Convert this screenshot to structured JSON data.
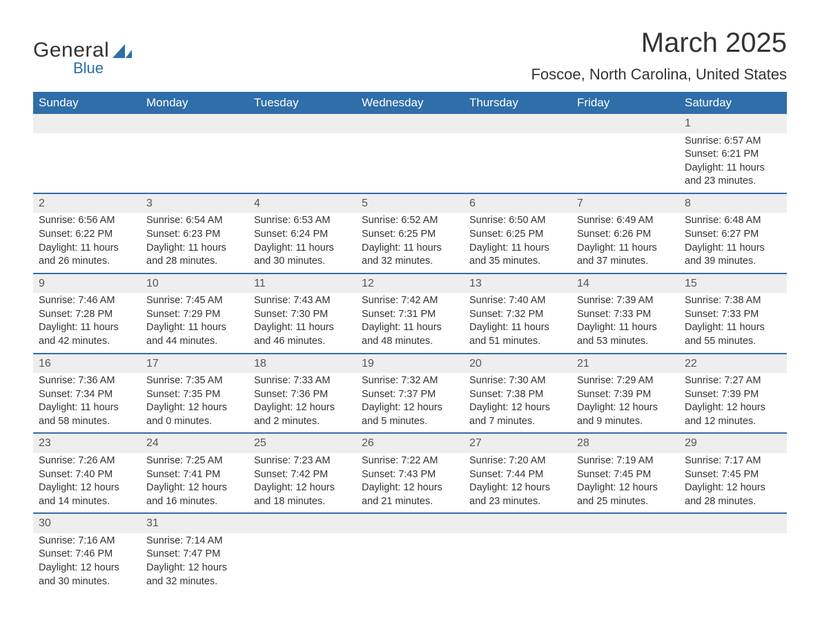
{
  "brand": {
    "name1": "General",
    "name2": "Blue",
    "icon_color": "#2f6ea8"
  },
  "title": {
    "month": "March 2025",
    "location": "Foscoe, North Carolina, United States"
  },
  "columns": [
    "Sunday",
    "Monday",
    "Tuesday",
    "Wednesday",
    "Thursday",
    "Friday",
    "Saturday"
  ],
  "colors": {
    "header_bg": "#2f6ea8",
    "header_fg": "#ffffff",
    "daynum_bg": "#eeeeee",
    "row_border": "#2f6ea8",
    "text": "#333333"
  },
  "weeks": [
    [
      null,
      null,
      null,
      null,
      null,
      null,
      {
        "n": "1",
        "sr": "Sunrise: 6:57 AM",
        "ss": "Sunset: 6:21 PM",
        "d1": "Daylight: 11 hours",
        "d2": "and 23 minutes."
      }
    ],
    [
      {
        "n": "2",
        "sr": "Sunrise: 6:56 AM",
        "ss": "Sunset: 6:22 PM",
        "d1": "Daylight: 11 hours",
        "d2": "and 26 minutes."
      },
      {
        "n": "3",
        "sr": "Sunrise: 6:54 AM",
        "ss": "Sunset: 6:23 PM",
        "d1": "Daylight: 11 hours",
        "d2": "and 28 minutes."
      },
      {
        "n": "4",
        "sr": "Sunrise: 6:53 AM",
        "ss": "Sunset: 6:24 PM",
        "d1": "Daylight: 11 hours",
        "d2": "and 30 minutes."
      },
      {
        "n": "5",
        "sr": "Sunrise: 6:52 AM",
        "ss": "Sunset: 6:25 PM",
        "d1": "Daylight: 11 hours",
        "d2": "and 32 minutes."
      },
      {
        "n": "6",
        "sr": "Sunrise: 6:50 AM",
        "ss": "Sunset: 6:25 PM",
        "d1": "Daylight: 11 hours",
        "d2": "and 35 minutes."
      },
      {
        "n": "7",
        "sr": "Sunrise: 6:49 AM",
        "ss": "Sunset: 6:26 PM",
        "d1": "Daylight: 11 hours",
        "d2": "and 37 minutes."
      },
      {
        "n": "8",
        "sr": "Sunrise: 6:48 AM",
        "ss": "Sunset: 6:27 PM",
        "d1": "Daylight: 11 hours",
        "d2": "and 39 minutes."
      }
    ],
    [
      {
        "n": "9",
        "sr": "Sunrise: 7:46 AM",
        "ss": "Sunset: 7:28 PM",
        "d1": "Daylight: 11 hours",
        "d2": "and 42 minutes."
      },
      {
        "n": "10",
        "sr": "Sunrise: 7:45 AM",
        "ss": "Sunset: 7:29 PM",
        "d1": "Daylight: 11 hours",
        "d2": "and 44 minutes."
      },
      {
        "n": "11",
        "sr": "Sunrise: 7:43 AM",
        "ss": "Sunset: 7:30 PM",
        "d1": "Daylight: 11 hours",
        "d2": "and 46 minutes."
      },
      {
        "n": "12",
        "sr": "Sunrise: 7:42 AM",
        "ss": "Sunset: 7:31 PM",
        "d1": "Daylight: 11 hours",
        "d2": "and 48 minutes."
      },
      {
        "n": "13",
        "sr": "Sunrise: 7:40 AM",
        "ss": "Sunset: 7:32 PM",
        "d1": "Daylight: 11 hours",
        "d2": "and 51 minutes."
      },
      {
        "n": "14",
        "sr": "Sunrise: 7:39 AM",
        "ss": "Sunset: 7:33 PM",
        "d1": "Daylight: 11 hours",
        "d2": "and 53 minutes."
      },
      {
        "n": "15",
        "sr": "Sunrise: 7:38 AM",
        "ss": "Sunset: 7:33 PM",
        "d1": "Daylight: 11 hours",
        "d2": "and 55 minutes."
      }
    ],
    [
      {
        "n": "16",
        "sr": "Sunrise: 7:36 AM",
        "ss": "Sunset: 7:34 PM",
        "d1": "Daylight: 11 hours",
        "d2": "and 58 minutes."
      },
      {
        "n": "17",
        "sr": "Sunrise: 7:35 AM",
        "ss": "Sunset: 7:35 PM",
        "d1": "Daylight: 12 hours",
        "d2": "and 0 minutes."
      },
      {
        "n": "18",
        "sr": "Sunrise: 7:33 AM",
        "ss": "Sunset: 7:36 PM",
        "d1": "Daylight: 12 hours",
        "d2": "and 2 minutes."
      },
      {
        "n": "19",
        "sr": "Sunrise: 7:32 AM",
        "ss": "Sunset: 7:37 PM",
        "d1": "Daylight: 12 hours",
        "d2": "and 5 minutes."
      },
      {
        "n": "20",
        "sr": "Sunrise: 7:30 AM",
        "ss": "Sunset: 7:38 PM",
        "d1": "Daylight: 12 hours",
        "d2": "and 7 minutes."
      },
      {
        "n": "21",
        "sr": "Sunrise: 7:29 AM",
        "ss": "Sunset: 7:39 PM",
        "d1": "Daylight: 12 hours",
        "d2": "and 9 minutes."
      },
      {
        "n": "22",
        "sr": "Sunrise: 7:27 AM",
        "ss": "Sunset: 7:39 PM",
        "d1": "Daylight: 12 hours",
        "d2": "and 12 minutes."
      }
    ],
    [
      {
        "n": "23",
        "sr": "Sunrise: 7:26 AM",
        "ss": "Sunset: 7:40 PM",
        "d1": "Daylight: 12 hours",
        "d2": "and 14 minutes."
      },
      {
        "n": "24",
        "sr": "Sunrise: 7:25 AM",
        "ss": "Sunset: 7:41 PM",
        "d1": "Daylight: 12 hours",
        "d2": "and 16 minutes."
      },
      {
        "n": "25",
        "sr": "Sunrise: 7:23 AM",
        "ss": "Sunset: 7:42 PM",
        "d1": "Daylight: 12 hours",
        "d2": "and 18 minutes."
      },
      {
        "n": "26",
        "sr": "Sunrise: 7:22 AM",
        "ss": "Sunset: 7:43 PM",
        "d1": "Daylight: 12 hours",
        "d2": "and 21 minutes."
      },
      {
        "n": "27",
        "sr": "Sunrise: 7:20 AM",
        "ss": "Sunset: 7:44 PM",
        "d1": "Daylight: 12 hours",
        "d2": "and 23 minutes."
      },
      {
        "n": "28",
        "sr": "Sunrise: 7:19 AM",
        "ss": "Sunset: 7:45 PM",
        "d1": "Daylight: 12 hours",
        "d2": "and 25 minutes."
      },
      {
        "n": "29",
        "sr": "Sunrise: 7:17 AM",
        "ss": "Sunset: 7:45 PM",
        "d1": "Daylight: 12 hours",
        "d2": "and 28 minutes."
      }
    ],
    [
      {
        "n": "30",
        "sr": "Sunrise: 7:16 AM",
        "ss": "Sunset: 7:46 PM",
        "d1": "Daylight: 12 hours",
        "d2": "and 30 minutes."
      },
      {
        "n": "31",
        "sr": "Sunrise: 7:14 AM",
        "ss": "Sunset: 7:47 PM",
        "d1": "Daylight: 12 hours",
        "d2": "and 32 minutes."
      },
      null,
      null,
      null,
      null,
      null
    ]
  ]
}
